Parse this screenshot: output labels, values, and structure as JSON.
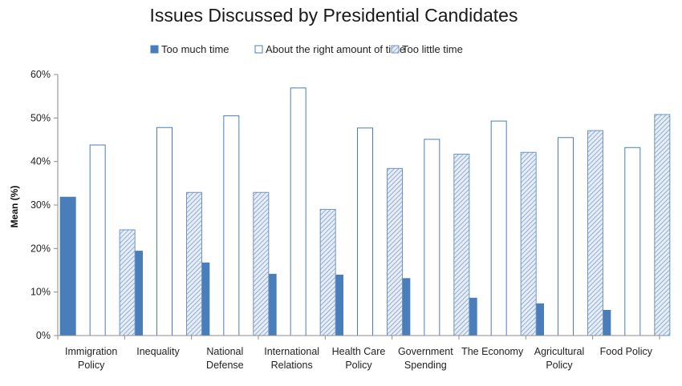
{
  "chart_data": {
    "type": "bar",
    "title": "Issues Discussed by Presidential Candidates",
    "ylabel": "Mean (%)",
    "xlabel": "",
    "ylim": [
      0,
      60
    ],
    "yticks": [
      0,
      10,
      20,
      30,
      40,
      50,
      60
    ],
    "ytick_labels": [
      "0%",
      "10%",
      "20%",
      "30%",
      "40%",
      "50%",
      "60%"
    ],
    "legend_position": "top",
    "grid": false,
    "categories": [
      [
        "Immigration",
        "Policy"
      ],
      [
        "Inequality"
      ],
      [
        "National",
        "Defense"
      ],
      [
        "International",
        "Relations"
      ],
      [
        "Health Care",
        "Policy"
      ],
      [
        "Government",
        "Spending"
      ],
      [
        "The Economy"
      ],
      [
        "Agricultural",
        "Policy"
      ],
      [
        "Food Policy"
      ]
    ],
    "series": [
      {
        "name": "Too much time",
        "style": "solid",
        "color": "#4a7ebb",
        "values": [
          31.8,
          19.4,
          16.7,
          14.1,
          13.9,
          13.1,
          8.6,
          7.3,
          5.8
        ]
      },
      {
        "name": "About the right amount of time",
        "style": "outline",
        "color": "#4a7ebb",
        "values": [
          43.8,
          47.8,
          50.5,
          56.9,
          47.7,
          45.1,
          49.3,
          45.5,
          43.2
        ]
      },
      {
        "name": "Too little time",
        "style": "hatch",
        "color": "#4a7ebb",
        "values": [
          24.3,
          32.9,
          32.9,
          29.0,
          38.4,
          41.7,
          42.1,
          47.1,
          50.8
        ]
      }
    ]
  }
}
